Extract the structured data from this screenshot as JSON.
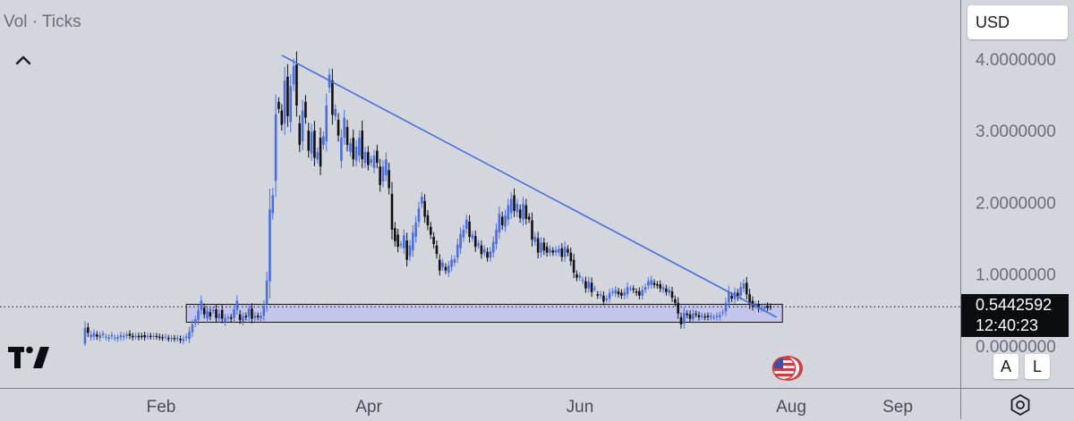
{
  "legend": {
    "title": "Vol · Ticks"
  },
  "currency": {
    "label": "USD"
  },
  "price_label": {
    "price": "0.5442592",
    "countdown": "12:40:23"
  },
  "scale_buttons": {
    "auto": "A",
    "log": "L"
  },
  "icons": {
    "collapse": "chevron-up-icon",
    "logo": "tradingview-logo-icon",
    "flag": "us-flag-icon",
    "settings": "settings-gear-icon"
  },
  "colors": {
    "background": "#d4d6de",
    "up": "#4a6ee0",
    "down": "#111111",
    "trendline": "#4a6ee0",
    "range_fill": "#c3c6ea"
  },
  "chart_data": {
    "type": "candlestick",
    "x_ticks": [
      "Feb",
      "Apr",
      "Jun",
      "Aug",
      "Sep"
    ],
    "y_ticks": [
      "0.0000000",
      "1.0000000",
      "2.0000000",
      "3.0000000",
      "4.0000000"
    ],
    "ylim": [
      0,
      4.2
    ],
    "last_price": 0.5442592,
    "series": [
      {
        "name": "",
        "values": [
          [
            0.03,
            0.25
          ],
          [
            0.26,
            0.18
          ],
          [
            0.12,
            0.16
          ],
          [
            0.13,
            0.18
          ],
          [
            0.16,
            0.13
          ],
          [
            0.11,
            0.15
          ],
          [
            0.15,
            0.17
          ],
          [
            0.12,
            0.13
          ],
          [
            0.1,
            0.12
          ],
          [
            0.13,
            0.15
          ],
          [
            0.11,
            0.12
          ],
          [
            0.1,
            0.12
          ],
          [
            0.12,
            0.15
          ],
          [
            0.12,
            0.14
          ],
          [
            0.14,
            0.16
          ],
          [
            0.17,
            0.14
          ],
          [
            0.14,
            0.12
          ],
          [
            0.13,
            0.14
          ],
          [
            0.14,
            0.12
          ],
          [
            0.14,
            0.13
          ],
          [
            0.15,
            0.12
          ],
          [
            0.13,
            0.14
          ],
          [
            0.14,
            0.13
          ],
          [
            0.13,
            0.14
          ],
          [
            0.14,
            0.13
          ],
          [
            0.13,
            0.12
          ],
          [
            0.12,
            0.11
          ],
          [
            0.12,
            0.13
          ],
          [
            0.11,
            0.1
          ],
          [
            0.1,
            0.11
          ],
          [
            0.11,
            0.1
          ],
          [
            0.1,
            0.11
          ],
          [
            0.1,
            0.08
          ],
          [
            0.07,
            0.1
          ],
          [
            0.11,
            0.13
          ],
          [
            0.1,
            0.2
          ],
          [
            0.19,
            0.3
          ],
          [
            0.31,
            0.37
          ],
          [
            0.36,
            0.5
          ],
          [
            0.5,
            0.63
          ],
          [
            0.53,
            0.44
          ],
          [
            0.38,
            0.49
          ],
          [
            0.47,
            0.41
          ],
          [
            0.49,
            0.5
          ],
          [
            0.51,
            0.39
          ],
          [
            0.38,
            0.45
          ],
          [
            0.5,
            0.38
          ],
          [
            0.33,
            0.39
          ],
          [
            0.39,
            0.4
          ],
          [
            0.4,
            0.38
          ],
          [
            0.39,
            0.51
          ],
          [
            0.5,
            0.63
          ],
          [
            0.44,
            0.36
          ],
          [
            0.34,
            0.41
          ],
          [
            0.42,
            0.4
          ],
          [
            0.41,
            0.52
          ],
          [
            0.52,
            0.38
          ],
          [
            0.39,
            0.42
          ],
          [
            0.42,
            0.4
          ],
          [
            0.38,
            0.42
          ],
          [
            0.42,
            0.56
          ],
          [
            0.58,
            0.91
          ],
          [
            0.9,
            1.9
          ],
          [
            1.85,
            2.1
          ],
          [
            2.3,
            3.23
          ],
          [
            3.4,
            3.3
          ],
          [
            3.28,
            3.08
          ],
          [
            3.1,
            3.7
          ],
          [
            3.75,
            3.2
          ],
          [
            3.12,
            3.62
          ],
          [
            3.64,
            3.9
          ],
          [
            3.92,
            3.35
          ],
          [
            3.1,
            2.8
          ],
          [
            2.85,
            3.28
          ],
          [
            3.4,
            3.18
          ],
          [
            3.0,
            2.72
          ],
          [
            2.68,
            2.98
          ],
          [
            3.0,
            2.62
          ],
          [
            2.6,
            2.7
          ],
          [
            2.9,
            2.5
          ],
          [
            2.8,
            2.92
          ],
          [
            2.85,
            3.35
          ],
          [
            3.6,
            3.78
          ],
          [
            3.7,
            3.22
          ],
          [
            3.2,
            3.3
          ],
          [
            3.15,
            2.93
          ],
          [
            2.58,
            2.9
          ],
          [
            2.9,
            3.18
          ],
          [
            3.05,
            2.8
          ],
          [
            2.7,
            2.82
          ],
          [
            2.9,
            2.6
          ],
          [
            2.58,
            2.78
          ],
          [
            2.65,
            2.9
          ],
          [
            3.0,
            2.6
          ],
          [
            2.55,
            2.7
          ],
          [
            2.7,
            2.52
          ],
          [
            2.55,
            2.6
          ],
          [
            2.48,
            2.65
          ],
          [
            2.72,
            2.55
          ],
          [
            2.5,
            2.24
          ],
          [
            2.29,
            2.5
          ],
          [
            2.38,
            2.6
          ],
          [
            2.45,
            2.2
          ],
          [
            2.12,
            1.62
          ],
          [
            1.64,
            1.46
          ],
          [
            1.55,
            1.38
          ],
          [
            1.4,
            1.42
          ],
          [
            1.36,
            1.54
          ],
          [
            1.47,
            1.2
          ],
          [
            1.25,
            1.4
          ],
          [
            1.33,
            1.58
          ],
          [
            1.52,
            1.72
          ],
          [
            1.73,
            1.92
          ],
          [
            1.98,
            2.08
          ],
          [
            2.02,
            1.8
          ],
          [
            1.82,
            1.68
          ],
          [
            1.66,
            1.55
          ],
          [
            1.52,
            1.42
          ],
          [
            1.4,
            1.28
          ],
          [
            1.2,
            1.05
          ],
          [
            1.1,
            1.16
          ],
          [
            1.1,
            1.05
          ],
          [
            1.02,
            1.12
          ],
          [
            1.1,
            1.2
          ],
          [
            1.16,
            1.21
          ],
          [
            1.23,
            1.41
          ],
          [
            1.36,
            1.56
          ],
          [
            1.51,
            1.62
          ],
          [
            1.63,
            1.76
          ],
          [
            1.73,
            1.52
          ],
          [
            1.5,
            1.55
          ],
          [
            1.53,
            1.38
          ],
          [
            1.4,
            1.43
          ],
          [
            1.4,
            1.28
          ],
          [
            1.3,
            1.35
          ],
          [
            1.31,
            1.23
          ],
          [
            1.23,
            1.32
          ],
          [
            1.3,
            1.45
          ],
          [
            1.42,
            1.62
          ],
          [
            1.58,
            1.84
          ],
          [
            1.8,
            1.68
          ],
          [
            1.66,
            1.82
          ],
          [
            1.76,
            1.96
          ],
          [
            1.85,
            2.05
          ],
          [
            2.1,
            1.88
          ],
          [
            1.86,
            1.98
          ],
          [
            1.9,
            1.78
          ],
          [
            1.76,
            1.98
          ],
          [
            1.96,
            1.77
          ],
          [
            1.8,
            1.76
          ],
          [
            1.75,
            1.48
          ],
          [
            1.45,
            1.52
          ],
          [
            1.5,
            1.3
          ],
          [
            1.3,
            1.44
          ],
          [
            1.44,
            1.33
          ],
          [
            1.38,
            1.3
          ],
          [
            1.3,
            1.35
          ],
          [
            1.33,
            1.3
          ],
          [
            1.3,
            1.34
          ],
          [
            1.3,
            1.35
          ],
          [
            1.36,
            1.24
          ],
          [
            1.24,
            1.38
          ],
          [
            1.35,
            1.3
          ],
          [
            1.3,
            1.18
          ],
          [
            1.2,
            1.02
          ],
          [
            1.0,
            0.95
          ],
          [
            0.95,
            0.98
          ],
          [
            0.9,
            0.92
          ],
          [
            0.9,
            0.8
          ],
          [
            0.8,
            0.9
          ],
          [
            0.88,
            0.75
          ],
          [
            0.8,
            0.8
          ],
          [
            0.72,
            0.7
          ],
          [
            0.7,
            0.72
          ],
          [
            0.7,
            0.62
          ],
          [
            0.64,
            0.66
          ],
          [
            0.66,
            0.74
          ],
          [
            0.74,
            0.76
          ],
          [
            0.73,
            0.78
          ],
          [
            0.76,
            0.72
          ],
          [
            0.74,
            0.7
          ],
          [
            0.7,
            0.75
          ],
          [
            0.72,
            0.82
          ],
          [
            0.8,
            0.8
          ],
          [
            0.8,
            0.78
          ],
          [
            0.76,
            0.74
          ],
          [
            0.76,
            0.7
          ],
          [
            0.7,
            0.78
          ],
          [
            0.78,
            0.82
          ],
          [
            0.84,
            0.9
          ],
          [
            0.85,
            0.92
          ],
          [
            0.88,
            0.85
          ],
          [
            0.86,
            0.84
          ],
          [
            0.86,
            0.8
          ],
          [
            0.78,
            0.82
          ],
          [
            0.8,
            0.75
          ],
          [
            0.74,
            0.78
          ],
          [
            0.76,
            0.67
          ],
          [
            0.65,
            0.6
          ],
          [
            0.6,
            0.45
          ],
          [
            0.4,
            0.3
          ],
          [
            0.31,
            0.46
          ],
          [
            0.45,
            0.43
          ],
          [
            0.44,
            0.38
          ],
          [
            0.37,
            0.45
          ],
          [
            0.45,
            0.44
          ],
          [
            0.43,
            0.4
          ],
          [
            0.41,
            0.42
          ],
          [
            0.41,
            0.4
          ],
          [
            0.42,
            0.4
          ],
          [
            0.4,
            0.42
          ],
          [
            0.4,
            0.4
          ],
          [
            0.4,
            0.42
          ],
          [
            0.4,
            0.43
          ],
          [
            0.46,
            0.47
          ],
          [
            0.48,
            0.6
          ],
          [
            0.6,
            0.76
          ],
          [
            0.7,
            0.66
          ],
          [
            0.65,
            0.75
          ],
          [
            0.74,
            0.68
          ],
          [
            0.7,
            0.82
          ],
          [
            0.8,
            0.87
          ],
          [
            0.88,
            0.72
          ],
          [
            0.72,
            0.58
          ],
          [
            0.63,
            0.55
          ],
          [
            0.56,
            0.58
          ],
          [
            0.58,
            0.52
          ],
          [
            0.51,
            0.53
          ],
          [
            0.52,
            0.55
          ],
          [
            0.56,
            0.53
          ],
          [
            0.55,
            0.54
          ]
        ]
      }
    ],
    "overlays": {
      "trendline": {
        "start": {
          "candle": 66,
          "price": 4.05
        },
        "end": {
          "candle": 232,
          "price": 0.4
        }
      },
      "range_box": {
        "start_candle": 34,
        "end_candle": 234,
        "top": 0.58,
        "bottom": 0.33
      }
    }
  }
}
